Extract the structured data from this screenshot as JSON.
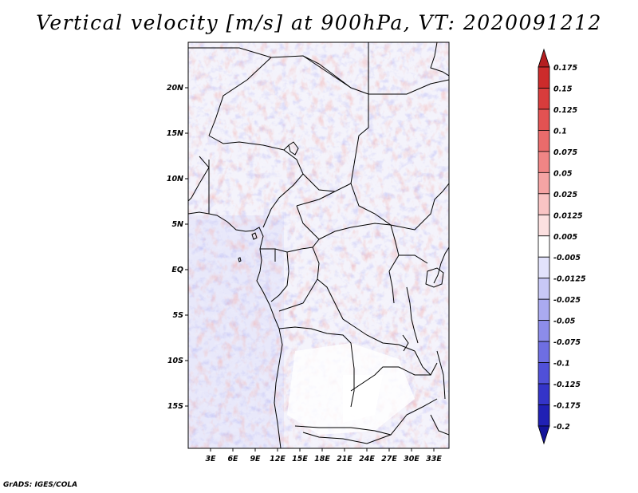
{
  "title": "Vertical velocity [m/s] at 900hPa, VT: 2020091212",
  "credit": "GrADS: IGES/COLA",
  "axes": {
    "lon_ticks": [
      "3E",
      "6E",
      "9E",
      "12E",
      "15E",
      "18E",
      "21E",
      "24E",
      "27E",
      "30E",
      "33E"
    ],
    "lat_ticks": [
      "20N",
      "15N",
      "10N",
      "5N",
      "EQ",
      "5S",
      "10S",
      "15S"
    ]
  },
  "colorbar": {
    "labels": [
      "0.175",
      "0.15",
      "0.125",
      "0.1",
      "0.075",
      "0.05",
      "0.025",
      "0.0125",
      "0.005",
      "-0.005",
      "-0.0125",
      "-0.025",
      "-0.05",
      "-0.075",
      "-0.1",
      "-0.125",
      "-0.175",
      "-0.2"
    ],
    "colors": [
      "#b41e20",
      "#cc2b2b",
      "#d83c3c",
      "#e25252",
      "#ea6b6b",
      "#f08585",
      "#f5a4a4",
      "#f9c4c4",
      "#fce0e0",
      "#ffffff",
      "#e2e2fb",
      "#c8c8f6",
      "#aaaaf0",
      "#8c8cea",
      "#6e6ee2",
      "#5050d8",
      "#3434c8",
      "#2020b4",
      "#14149a"
    ]
  },
  "legend_image": "shaded field: red = upward, blue = downward motion; black lines = coastlines and country borders"
}
